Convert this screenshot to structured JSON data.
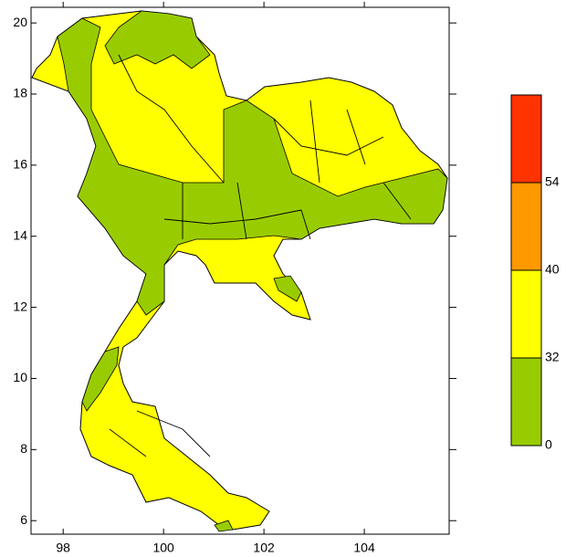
{
  "map": {
    "xlim": [
      97.36,
      105.69
    ],
    "ylim": [
      5.62,
      20.44
    ],
    "xticks": [
      98,
      100,
      102,
      104
    ],
    "yticks": [
      6,
      8,
      10,
      12,
      14,
      16,
      18,
      20
    ]
  },
  "legend": {
    "levels": [
      0,
      32,
      40,
      54
    ],
    "colors": [
      "#99cc00",
      "#ffff00",
      "#ff9900",
      "#ff3300"
    ]
  }
}
